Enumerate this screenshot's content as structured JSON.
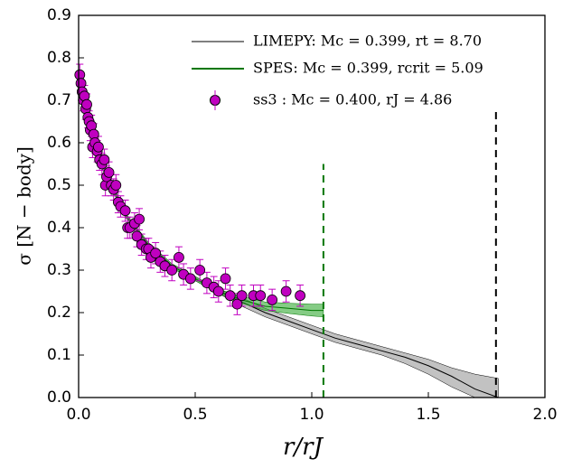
{
  "chart_data": {
    "type": "scatter-lines",
    "xlabel": "r/rJ",
    "ylabel": "σ [N − body]",
    "xlim": [
      0,
      2
    ],
    "ylim": [
      0,
      0.9
    ],
    "xticks": [
      {
        "value": 0,
        "label": "0.0"
      },
      {
        "value": 0.5,
        "label": "0.5"
      },
      {
        "value": 1,
        "label": "1.0"
      },
      {
        "value": 1.5,
        "label": "1.5"
      },
      {
        "value": 2,
        "label": "2.0"
      }
    ],
    "yticks": [
      {
        "value": 0,
        "label": "0.0"
      },
      0.1,
      0.2,
      0.3,
      0.4,
      0.5,
      0.6,
      0.7,
      0.8,
      0.9
    ],
    "lines": [
      {
        "name": "LIMEPY: Mc = 0.399, rt = 8.70",
        "color": "#000000",
        "band_color": "#999999",
        "x": [
          0,
          0.05,
          0.1,
          0.2,
          0.3,
          0.4,
          0.5,
          0.6,
          0.7,
          0.8,
          0.9,
          1.0,
          1.1,
          1.2,
          1.3,
          1.4,
          1.5,
          1.6,
          1.7,
          1.8
        ],
        "values": [
          0.75,
          0.64,
          0.55,
          0.43,
          0.36,
          0.31,
          0.28,
          0.25,
          0.225,
          0.2,
          0.18,
          0.16,
          0.14,
          0.125,
          0.11,
          0.095,
          0.075,
          0.05,
          0.02,
          0.0
        ],
        "low": [
          0.74,
          0.63,
          0.54,
          0.425,
          0.355,
          0.305,
          0.275,
          0.245,
          0.215,
          0.19,
          0.17,
          0.15,
          0.13,
          0.115,
          0.1,
          0.08,
          0.055,
          0.025,
          0,
          0
        ],
        "high": [
          0.76,
          0.65,
          0.56,
          0.435,
          0.365,
          0.315,
          0.285,
          0.255,
          0.235,
          0.21,
          0.19,
          0.17,
          0.15,
          0.135,
          0.12,
          0.105,
          0.09,
          0.07,
          0.055,
          0.045
        ]
      },
      {
        "name": "SPES: Mc = 0.399, rcrit = 5.09",
        "color": "#007700",
        "band_color": "#33aa33",
        "x": [
          0,
          0.05,
          0.1,
          0.2,
          0.3,
          0.4,
          0.5,
          0.6,
          0.7,
          0.8,
          0.9,
          1.0,
          1.05
        ],
        "values": [
          0.75,
          0.64,
          0.55,
          0.43,
          0.36,
          0.31,
          0.28,
          0.25,
          0.23,
          0.215,
          0.21,
          0.205,
          0.205
        ],
        "low": [
          0.74,
          0.63,
          0.54,
          0.425,
          0.355,
          0.305,
          0.275,
          0.245,
          0.222,
          0.205,
          0.198,
          0.192,
          0.19
        ],
        "high": [
          0.76,
          0.65,
          0.56,
          0.435,
          0.365,
          0.315,
          0.285,
          0.255,
          0.238,
          0.225,
          0.222,
          0.22,
          0.22
        ]
      }
    ],
    "points": {
      "name": "ss3 : Mc = 0.400, rJ = 4.86",
      "color": "#c000c0",
      "error_color": "#c000c0",
      "error": 0.025,
      "x": [
        0.005,
        0.01,
        0.015,
        0.02,
        0.025,
        0.03,
        0.035,
        0.04,
        0.045,
        0.05,
        0.055,
        0.06,
        0.065,
        0.07,
        0.08,
        0.085,
        0.09,
        0.1,
        0.11,
        0.115,
        0.12,
        0.13,
        0.14,
        0.15,
        0.16,
        0.17,
        0.18,
        0.2,
        0.21,
        0.22,
        0.24,
        0.25,
        0.26,
        0.27,
        0.29,
        0.3,
        0.31,
        0.33,
        0.35,
        0.37,
        0.4,
        0.43,
        0.45,
        0.48,
        0.52,
        0.55,
        0.58,
        0.6,
        0.63,
        0.65,
        0.68,
        0.7,
        0.75,
        0.78,
        0.83,
        0.89,
        0.95
      ],
      "values": [
        0.76,
        0.74,
        0.72,
        0.7,
        0.71,
        0.68,
        0.69,
        0.66,
        0.65,
        0.63,
        0.64,
        0.59,
        0.62,
        0.6,
        0.58,
        0.59,
        0.56,
        0.55,
        0.56,
        0.5,
        0.52,
        0.53,
        0.5,
        0.49,
        0.5,
        0.46,
        0.45,
        0.44,
        0.4,
        0.4,
        0.41,
        0.38,
        0.42,
        0.36,
        0.35,
        0.35,
        0.33,
        0.34,
        0.32,
        0.31,
        0.3,
        0.33,
        0.29,
        0.28,
        0.3,
        0.27,
        0.26,
        0.25,
        0.28,
        0.24,
        0.22,
        0.24,
        0.24,
        0.24,
        0.23,
        0.25,
        0.24
      ]
    },
    "vlines": [
      {
        "x": 1.05,
        "top": 0.55,
        "color": "#007700"
      },
      {
        "x": 1.79,
        "top": 0.68,
        "color": "#000000"
      }
    ]
  }
}
